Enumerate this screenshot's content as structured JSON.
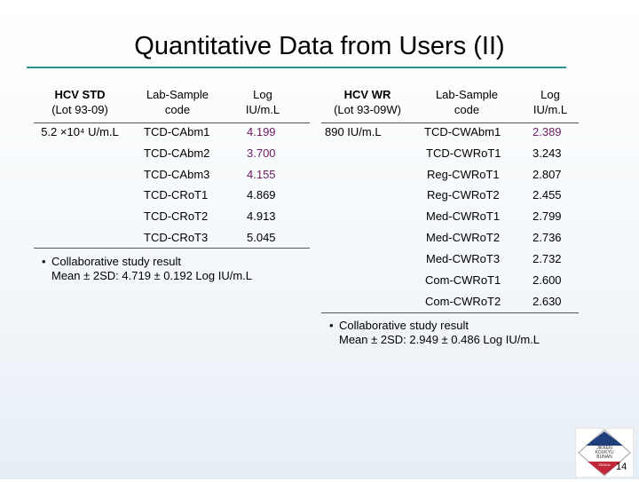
{
  "slide": {
    "title": "Quantitative Data from Users (II)",
    "page_number": "14"
  },
  "left_table": {
    "headers": [
      {
        "line1": "HCV STD",
        "line2": "(Lot 93-09)"
      },
      {
        "line1": "Lab-Sample",
        "line2": "code"
      },
      {
        "line1": "Log",
        "line2": "IU/m.L"
      }
    ],
    "std_value": "5.2 ×10⁴ U/m.L",
    "rows": [
      {
        "code": "TCD-CAbm1",
        "log": "4.199"
      },
      {
        "code": "TCD-CAbm2",
        "log": "3.700"
      },
      {
        "code": "TCD-CAbm3",
        "log": "4.155"
      },
      {
        "code": "TCD-CRoT1",
        "log": "4.869"
      },
      {
        "code": "TCD-CRoT2",
        "log": "4.913"
      },
      {
        "code": "TCD-CRoT3",
        "log": "5.045"
      }
    ],
    "note_line1": "Collaborative study result",
    "note_line2": "Mean ± 2SD: 4.719 ± 0.192 Log IU/m.L"
  },
  "right_table": {
    "headers": [
      {
        "line1": "HCV WR",
        "line2": "(Lot 93-09W)"
      },
      {
        "line1": "Lab-Sample",
        "line2": "code"
      },
      {
        "line1": "Log",
        "line2": "IU/m.L"
      }
    ],
    "wr_value": "890 IU/m.L",
    "rows": [
      {
        "code": "TCD-CWAbm1",
        "log": "2.389"
      },
      {
        "code": "TCD-CWRoT1",
        "log": "3.243"
      },
      {
        "code": "Reg-CWRoT1",
        "log": "2.807"
      },
      {
        "code": "Reg-CWRoT2",
        "log": "2.455"
      },
      {
        "code": "Med-CWRoT1",
        "log": "2.799"
      },
      {
        "code": "Med-CWRoT2",
        "log": "2.736"
      },
      {
        "code": "Med-CWRoT3",
        "log": "2.732"
      },
      {
        "code": "Com-CWRoT1",
        "log": "2.600"
      },
      {
        "code": "Com-CWRoT2",
        "log": "2.630"
      }
    ],
    "note_line1": "Collaborative study result",
    "note_line2": "Mean ± 2SD: 2.949 ± 0.486 Log IU/m.L"
  },
  "logo": {
    "text_lines": [
      "JIKKEN",
      "KOUKYU",
      "BUNAN",
      "ZENDA"
    ],
    "colors": {
      "top": "#1e3f7a",
      "bottom": "#c0283a"
    }
  }
}
